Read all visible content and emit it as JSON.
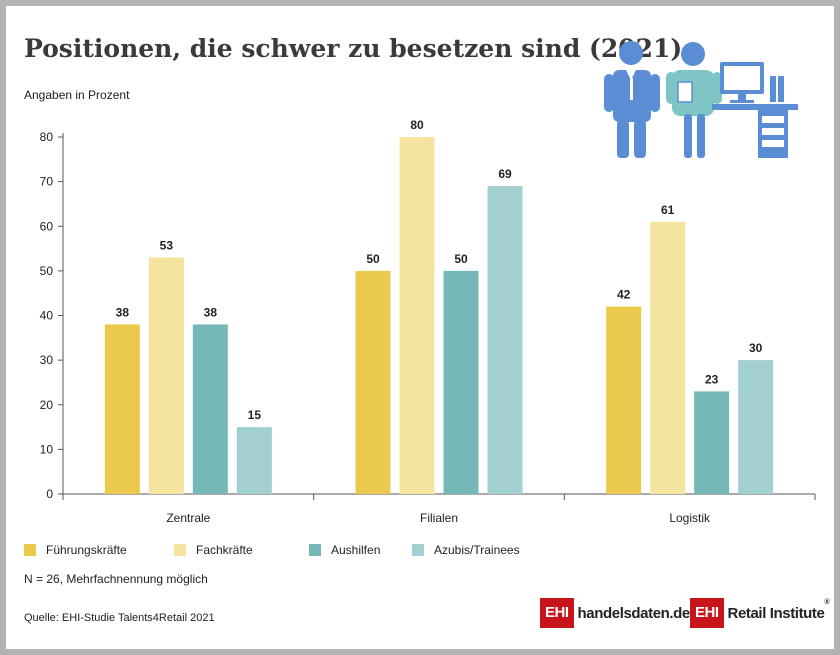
{
  "title": "Positionen, die schwer zu besetzen sind (2021)",
  "subtitle": "Angaben in Prozent",
  "note": "N = 26, Mehrfachnennung möglich",
  "source": "Quelle: EHI-Studie Talents4Retail 2021",
  "logos": {
    "left_box": "EHI",
    "left_text": "handelsdaten.de",
    "right_box": "EHI",
    "right_text": "Retail Institute",
    "right_mark": "®"
  },
  "icon": "office-workers-illustration-icon",
  "colors": {
    "fuehrungskraefte": "#ebc94c",
    "fachkraefte": "#f5e4a0",
    "aushilfen": "#76b8b7",
    "azubis": "#a2cfcf",
    "icon": "#5b8dd4",
    "icon_accent": "#7ec4c4",
    "logo_red": "#c8151b"
  },
  "chart_data": {
    "type": "bar",
    "categories": [
      "Zentrale",
      "Filialen",
      "Logistik"
    ],
    "series": [
      {
        "name": "Führungskräfte",
        "values": [
          38,
          50,
          42
        ]
      },
      {
        "name": "Fachkräfte",
        "values": [
          53,
          80,
          61
        ]
      },
      {
        "name": "Aushilfen",
        "values": [
          38,
          50,
          23
        ]
      },
      {
        "name": "Azubis/Trainees",
        "values": [
          15,
          69,
          30
        ]
      }
    ],
    "ylabel": "Angaben in Prozent",
    "ylim": [
      0,
      80
    ],
    "yticks": [
      0,
      10,
      20,
      30,
      40,
      50,
      60,
      70,
      80
    ],
    "grid": false,
    "legend": "bottom",
    "data_labels": true
  }
}
